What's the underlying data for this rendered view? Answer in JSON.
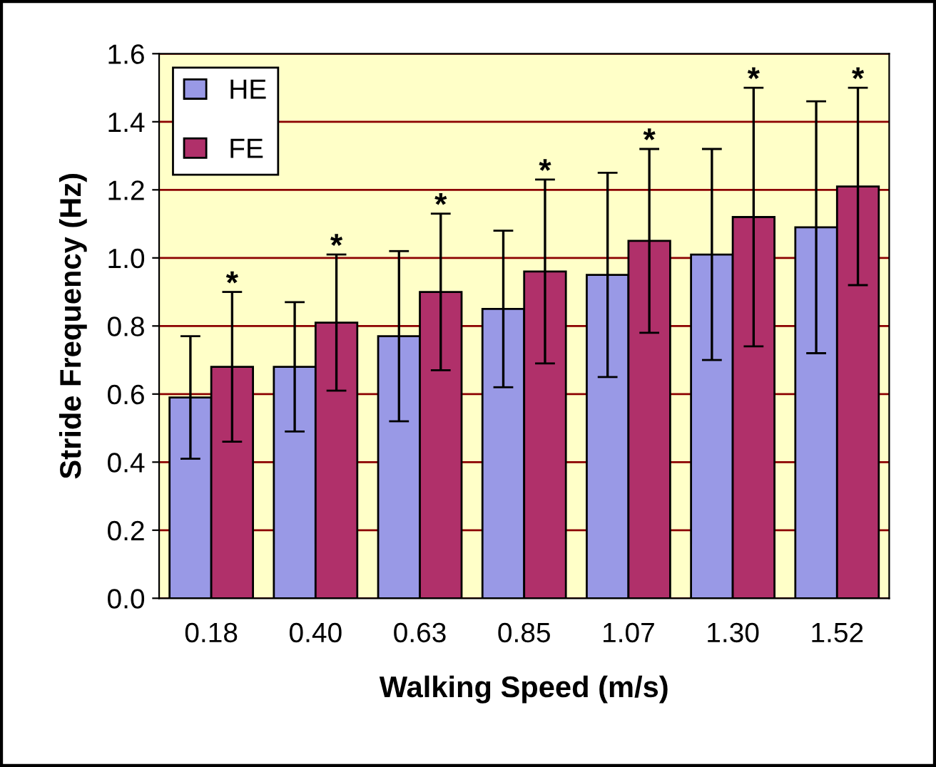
{
  "chart_data": {
    "type": "bar",
    "xlabel": "Walking Speed (m/s)",
    "ylabel": "Stride Frequency (Hz)",
    "categories": [
      "0.18",
      "0.40",
      "0.63",
      "0.85",
      "1.07",
      "1.30",
      "1.52"
    ],
    "series": [
      {
        "name": "HE",
        "color": "#9999e6",
        "values": [
          0.59,
          0.68,
          0.77,
          0.85,
          0.95,
          1.01,
          1.09
        ],
        "errors": [
          0.18,
          0.19,
          0.25,
          0.23,
          0.3,
          0.31,
          0.37
        ]
      },
      {
        "name": "FE",
        "color": "#b0306a",
        "values": [
          0.68,
          0.81,
          0.9,
          0.96,
          1.05,
          1.12,
          1.21
        ],
        "errors": [
          0.22,
          0.2,
          0.23,
          0.27,
          0.27,
          0.38,
          0.29
        ]
      }
    ],
    "ylim": [
      0,
      1.6
    ],
    "yticks": [
      {
        "value": 0,
        "label": "0.0"
      },
      0.2,
      0.4,
      0.6,
      0.8,
      {
        "value": 1,
        "label": "1.0"
      },
      1.2,
      1.4,
      1.6
    ],
    "grid": "y",
    "legend": "top left",
    "annotations": [
      "*",
      "*",
      "*",
      "*",
      "*",
      "*",
      "*"
    ]
  }
}
